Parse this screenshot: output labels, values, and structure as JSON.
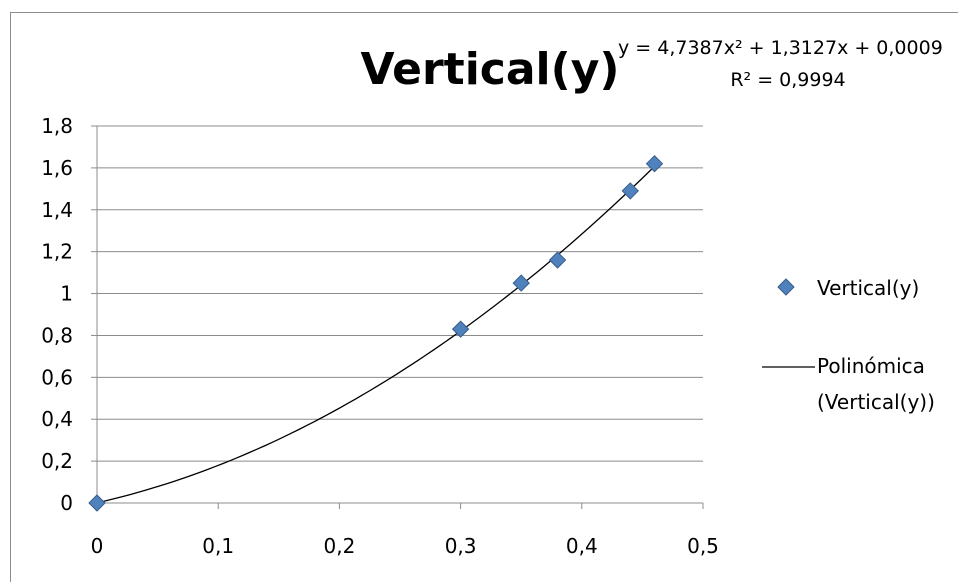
{
  "chart_data": {
    "type": "scatter",
    "title": "Vertical(y)",
    "xlabel": "",
    "ylabel": "",
    "xlim": [
      0,
      0.5
    ],
    "ylim": [
      0,
      1.8
    ],
    "x_ticks": [
      "0",
      "0,1",
      "0,2",
      "0,3",
      "0,4",
      "0,5"
    ],
    "y_ticks": [
      "0",
      "0,2",
      "0,4",
      "0,6",
      "0,8",
      "1",
      "1,2",
      "1,4",
      "1,6",
      "1,8"
    ],
    "grid": "horizontal",
    "legend_position": "right",
    "series": [
      {
        "name": "Vertical(y)",
        "color": "#4f81bd",
        "marker": "diamond",
        "x": [
          0,
          0.3,
          0.35,
          0.38,
          0.44,
          0.46
        ],
        "y": [
          0,
          0.83,
          1.05,
          1.16,
          1.49,
          1.62
        ]
      }
    ],
    "trendline": {
      "name": "Polinómica (Vertical(y))",
      "name_line1": "Polinómica",
      "name_line2": "(Vertical(y))",
      "type": "polynomial",
      "coefficients": [
        4.7387,
        1.3127,
        0.0009
      ],
      "x_range": [
        0,
        0.46
      ],
      "color": "#000000",
      "equation": "y = 4,7387x² + 1,3127x + 0,0009",
      "r_squared": "R² = 0,9994"
    }
  }
}
